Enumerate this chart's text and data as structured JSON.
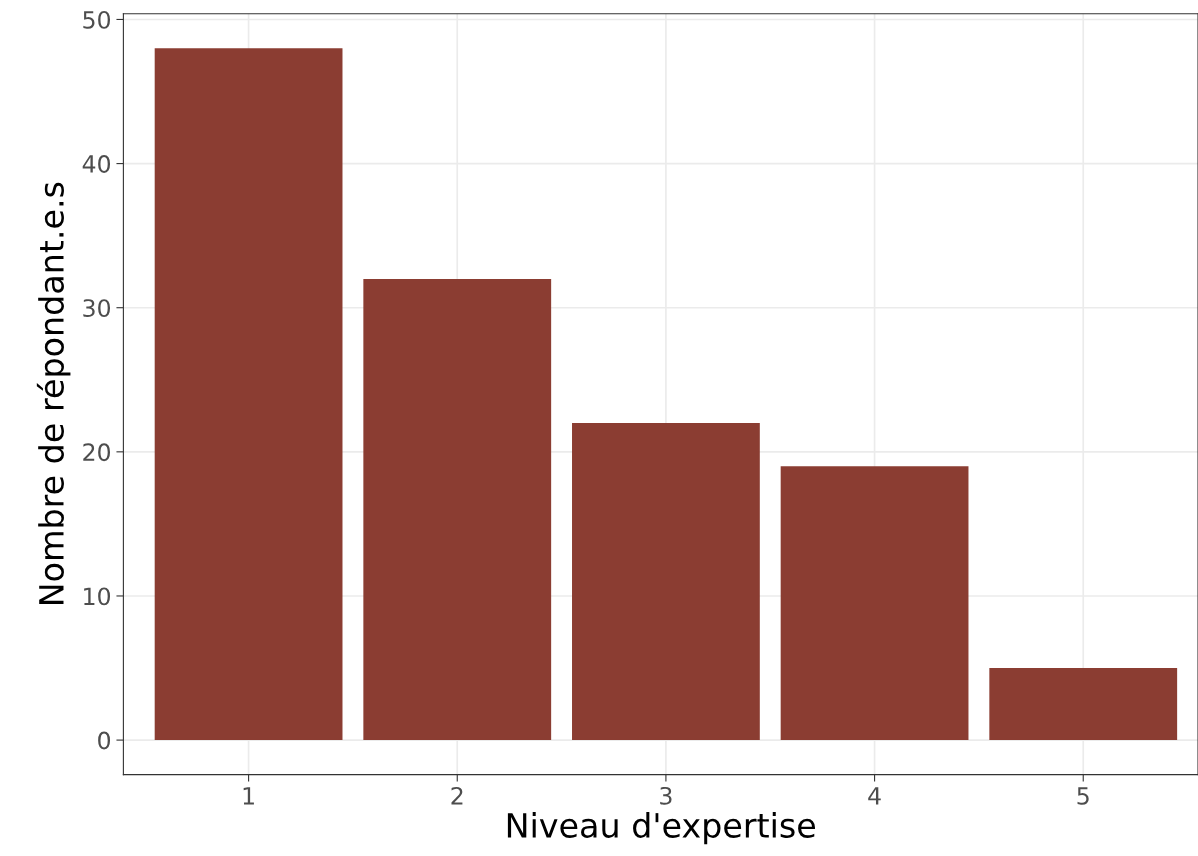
{
  "chart_data": {
    "type": "bar",
    "xlabel": "Niveau d'expertise",
    "ylabel": "Nombre de répondant.e.s",
    "categories": [
      "1",
      "2",
      "3",
      "4",
      "5"
    ],
    "values": [
      48,
      32,
      22,
      19,
      5
    ],
    "color": "#8b3d32",
    "ylim": [
      -2.4,
      50.4
    ],
    "yticks": [
      0,
      10,
      20,
      30,
      40,
      50
    ],
    "grid": true
  }
}
